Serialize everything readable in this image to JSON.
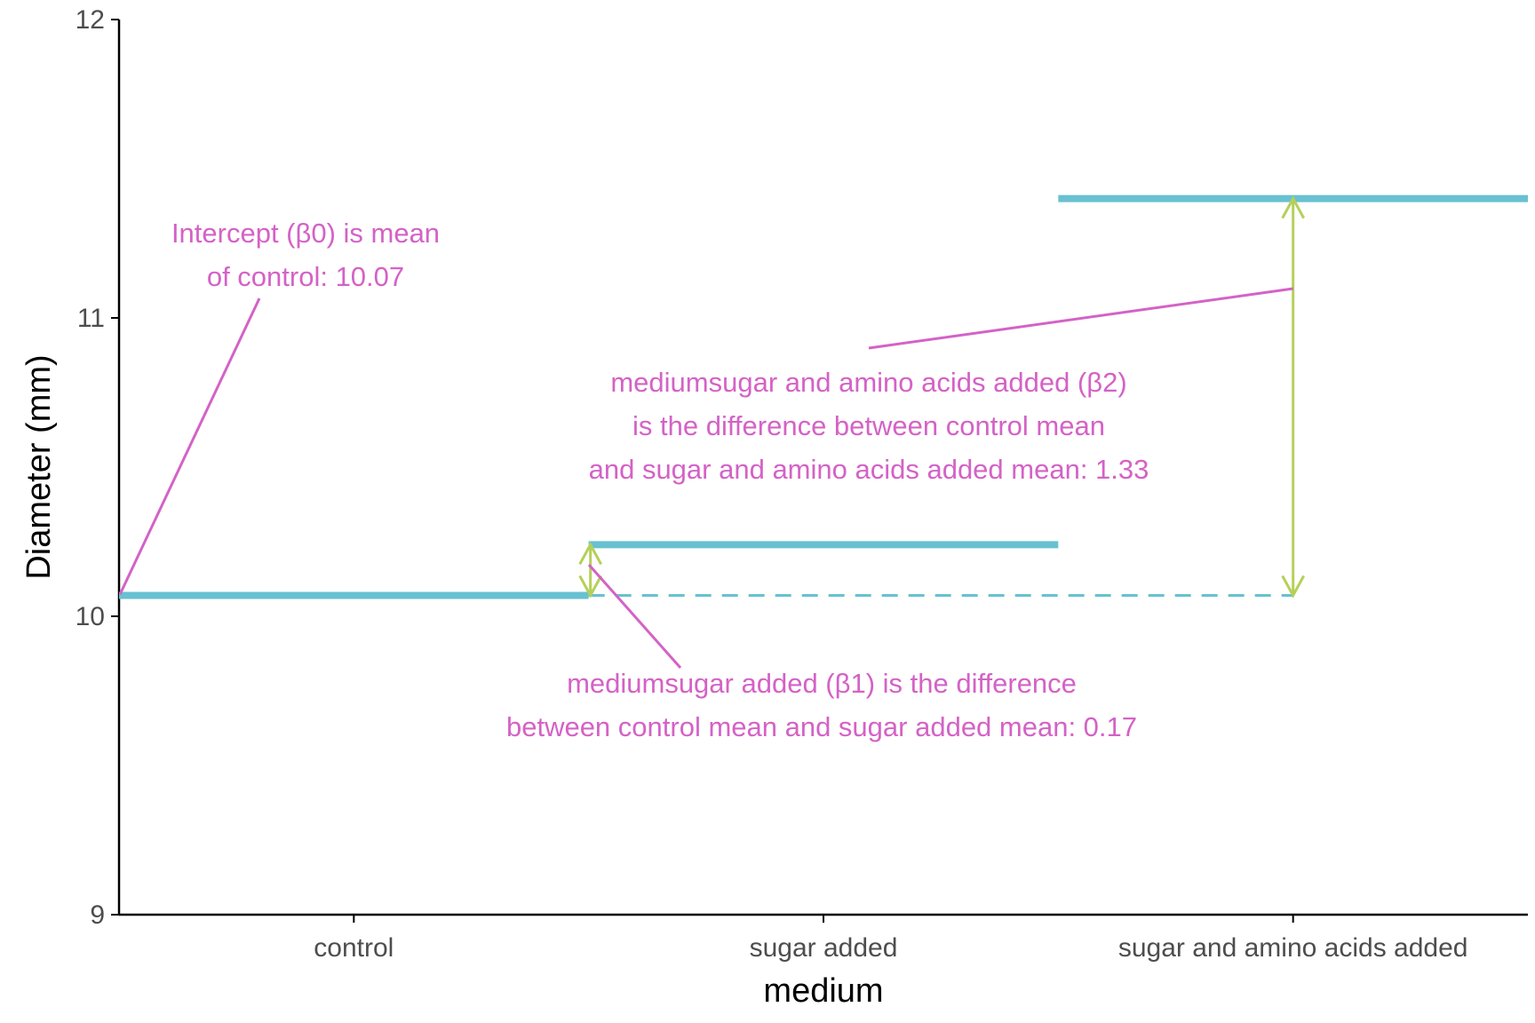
{
  "chart_data": {
    "type": "line",
    "xlabel": "medium",
    "ylabel": "Diameter (mm)",
    "ylim": [
      9,
      12
    ],
    "yticks": [
      9,
      10,
      11,
      12
    ],
    "categories": [
      "control",
      "sugar added",
      "sugar and amino acids added"
    ],
    "means": [
      10.07,
      10.24,
      11.4
    ],
    "grid": false,
    "colors": {
      "mean_line": "#68c1d1",
      "arrow": "#b5d05a",
      "annotation": "#d462c6",
      "axis": "#000000"
    },
    "annotations": [
      {
        "id": "intercept",
        "lines": [
          "Intercept (β0) is mean",
          "of control: 10.07"
        ]
      },
      {
        "id": "beta1",
        "lines": [
          "mediumsugar added (β1) is the difference",
          "between control mean and sugar added mean: 0.17"
        ]
      },
      {
        "id": "beta2",
        "lines": [
          "mediumsugar and amino acids added (β2)",
          "is the difference between control mean",
          "and sugar and amino acids added mean: 1.33"
        ]
      }
    ]
  }
}
